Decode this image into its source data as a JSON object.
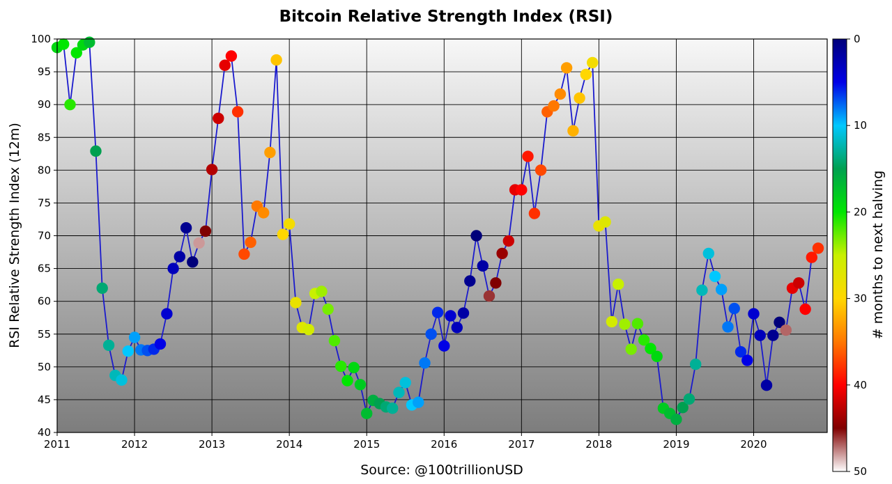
{
  "chart_data": {
    "type": "scatter",
    "title": "Bitcoin Relative Strength Index (RSI)",
    "xlabel": "Source: @100trillionUSD",
    "ylabel": "RSI Relative Strength Index (12m)",
    "colorbar_label": "# months to next halving",
    "xlim": [
      2011,
      2020.95
    ],
    "ylim": [
      40,
      100
    ],
    "x_ticks": [
      2011,
      2012,
      2013,
      2014,
      2015,
      2016,
      2017,
      2018,
      2019,
      2020
    ],
    "y_ticks": [
      40,
      45,
      50,
      55,
      60,
      65,
      70,
      75,
      80,
      85,
      90,
      95,
      100
    ],
    "colorbar_range": [
      0,
      50
    ],
    "colorbar_ticks": [
      0,
      10,
      20,
      30,
      40,
      50
    ],
    "grid": true,
    "line_color": "#1a1acd",
    "background_gradient": [
      "#f7f7f7",
      "#7d7d7d"
    ],
    "series": [
      {
        "x": [
          2011.0,
          2011.083,
          2011.167,
          2011.25,
          2011.333,
          2011.417,
          2011.5,
          2011.583,
          2011.667,
          2011.75,
          2011.833,
          2011.917,
          2012.0,
          2012.083,
          2012.167,
          2012.25,
          2012.333,
          2012.417,
          2012.5,
          2012.583,
          2012.667,
          2012.75,
          2012.833,
          2012.917,
          2013.0,
          2013.083,
          2013.167,
          2013.25,
          2013.333,
          2013.417,
          2013.5,
          2013.583,
          2013.667,
          2013.75,
          2013.833,
          2013.917,
          2014.0,
          2014.083,
          2014.167,
          2014.25,
          2014.333,
          2014.417,
          2014.5,
          2014.583,
          2014.667,
          2014.75,
          2014.833,
          2014.917,
          2015.0,
          2015.083,
          2015.167,
          2015.25,
          2015.333,
          2015.417,
          2015.5,
          2015.583,
          2015.667,
          2015.75,
          2015.833,
          2015.917,
          2016.0,
          2016.083,
          2016.167,
          2016.25,
          2016.333,
          2016.417,
          2016.5,
          2016.583,
          2016.667,
          2016.75,
          2016.833,
          2016.917,
          2017.0,
          2017.083,
          2017.167,
          2017.25,
          2017.333,
          2017.417,
          2017.5,
          2017.583,
          2017.667,
          2017.75,
          2017.833,
          2017.917,
          2018.0,
          2018.083,
          2018.167,
          2018.25,
          2018.333,
          2018.417,
          2018.5,
          2018.583,
          2018.667,
          2018.75,
          2018.833,
          2018.917,
          2019.0,
          2019.083,
          2019.167,
          2019.25,
          2019.333,
          2019.417,
          2019.5,
          2019.583,
          2019.667,
          2019.75,
          2019.833,
          2019.917,
          2020.0,
          2020.083,
          2020.167,
          2020.25,
          2020.333,
          2020.417,
          2020.5,
          2020.583,
          2020.667,
          2020.75,
          2020.833
        ],
        "y": [
          98.7,
          99.2,
          90.0,
          97.9,
          99.1,
          99.5,
          82.9,
          62.0,
          53.3,
          48.7,
          48.0,
          52.4,
          54.5,
          52.6,
          52.5,
          52.7,
          53.5,
          58.1,
          65.0,
          66.8,
          71.2,
          66.0,
          68.9,
          70.7,
          80.1,
          87.9,
          96.0,
          97.4,
          88.9,
          67.2,
          69.0,
          74.5,
          73.5,
          82.7,
          96.8,
          70.2,
          71.8,
          59.8,
          56.0,
          55.7,
          61.2,
          61.5,
          58.8,
          54.0,
          50.1,
          47.9,
          49.9,
          47.3,
          42.9,
          44.9,
          44.4,
          43.9,
          43.7,
          46.1,
          47.6,
          44.2,
          44.6,
          50.6,
          55.0,
          58.3,
          53.2,
          57.8,
          56.0,
          58.2,
          63.1,
          70.0,
          65.4,
          60.8,
          62.8,
          67.3,
          69.2,
          77.0,
          77.0,
          82.1,
          73.4,
          80.0,
          88.9,
          89.8,
          91.6,
          95.6,
          86.0,
          91.0,
          94.6,
          96.4,
          71.5,
          72.1,
          56.9,
          62.6,
          56.5,
          52.7,
          56.6,
          54.1,
          52.8,
          51.6,
          43.7,
          42.9,
          42.0,
          43.8,
          45.1,
          50.4,
          61.7,
          67.3,
          63.8,
          61.8,
          56.1,
          58.9,
          52.3,
          51.0,
          58.1,
          54.8,
          47.2,
          54.8,
          56.8,
          55.6,
          62.0,
          62.8,
          58.8,
          66.7,
          68.1
        ],
        "color_value": [
          19,
          20,
          21,
          20,
          19,
          17,
          15,
          14,
          13,
          12,
          11,
          10,
          9,
          8,
          7,
          6,
          5,
          4,
          3,
          2,
          1,
          0,
          48,
          45,
          43,
          42,
          41,
          40,
          38,
          37,
          36,
          35,
          34,
          33,
          31,
          30,
          29,
          28,
          27,
          26,
          25,
          24,
          23,
          22,
          21,
          20,
          19,
          18,
          17,
          16,
          15,
          14,
          13,
          12,
          11,
          10,
          9,
          8,
          7,
          6,
          5,
          4,
          3,
          2,
          1,
          0,
          2,
          46,
          45,
          44,
          42,
          41,
          40,
          39,
          38,
          37,
          36,
          35,
          34,
          33,
          32,
          31,
          30,
          29,
          28,
          27,
          26,
          25,
          24,
          23,
          22,
          21,
          20,
          19,
          18,
          17,
          16,
          15,
          14,
          13,
          12,
          11,
          10,
          9,
          8,
          7,
          6,
          5,
          4,
          3,
          2,
          1,
          0,
          47,
          41,
          42,
          40,
          39,
          38
        ]
      }
    ]
  }
}
